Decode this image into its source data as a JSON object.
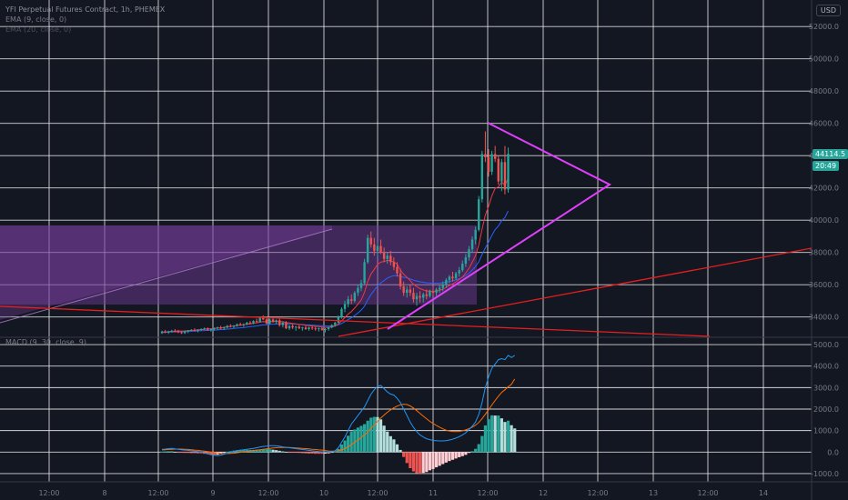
{
  "header": {
    "title": "YFI Perpetual Futures Contract, 1h, PHEMEX",
    "ema1": "EMA (9, close, 0)",
    "ema2": "EMA (20, close, 0)",
    "currency": "USD"
  },
  "last_price": "44114.5",
  "countdown": "20:49",
  "macd_label": "MACD (9, 30, close, 9)",
  "colors": {
    "background": "#131722",
    "grid": "#e8e8e8",
    "up": "#26a69a",
    "down": "#ef5350",
    "trend_red": "#e91e1e",
    "triangle": "#e040fb",
    "zone_fill": "#7b3fa0",
    "ema_fast": "#f23645",
    "ema_slow": "#2962ff",
    "macd_line": "#2196f3",
    "signal_line": "#ff6d00"
  },
  "chart_data": [
    {
      "type": "candlestick",
      "title": "YFI Perpetual Futures Contract, 1h, PHEMEX",
      "price_axis": {
        "ticks": [
          "52000.0",
          "50000.0",
          "48000.0",
          "46000.0",
          "44000.0",
          "42000.0",
          "40000.0",
          "38000.0",
          "36000.0",
          "34000.0"
        ],
        "range": [
          32800,
          52800
        ],
        "unit": "USD"
      },
      "time_axis": {
        "ticks": [
          "12:00",
          "8",
          "12:00",
          "9",
          "12:00",
          "10",
          "12:00",
          "11",
          "12:00",
          "12",
          "12:00",
          "13",
          "12:00",
          "14"
        ]
      },
      "last_price": 44114.5,
      "candles_ohlc": [
        [
          33000,
          33150,
          32950,
          33100
        ],
        [
          33100,
          33200,
          33000,
          33050
        ],
        [
          33050,
          33150,
          32950,
          33100
        ],
        [
          33100,
          33200,
          33050,
          33150
        ],
        [
          33150,
          33250,
          33050,
          33100
        ],
        [
          33100,
          33200,
          33000,
          33050
        ],
        [
          33050,
          33100,
          32950,
          33000
        ],
        [
          33000,
          33150,
          32950,
          33100
        ],
        [
          33100,
          33200,
          33000,
          33150
        ],
        [
          33150,
          33250,
          33100,
          33200
        ],
        [
          33200,
          33300,
          33100,
          33150
        ],
        [
          33150,
          33250,
          33050,
          33200
        ],
        [
          33200,
          33300,
          33150,
          33250
        ],
        [
          33250,
          33350,
          33200,
          33300
        ],
        [
          33300,
          33350,
          33150,
          33200
        ],
        [
          33200,
          33300,
          33100,
          33250
        ],
        [
          33250,
          33350,
          33150,
          33300
        ],
        [
          33300,
          33400,
          33200,
          33350
        ],
        [
          33350,
          33450,
          33250,
          33300
        ],
        [
          33300,
          33400,
          33200,
          33350
        ],
        [
          33350,
          33500,
          33300,
          33450
        ],
        [
          33450,
          33550,
          33350,
          33400
        ],
        [
          33400,
          33500,
          33300,
          33450
        ],
        [
          33450,
          33600,
          33400,
          33550
        ],
        [
          33550,
          33650,
          33450,
          33500
        ],
        [
          33500,
          33600,
          33400,
          33550
        ],
        [
          33550,
          33700,
          33500,
          33650
        ],
        [
          33650,
          33750,
          33550,
          33600
        ],
        [
          33600,
          33800,
          33550,
          33750
        ],
        [
          33750,
          33900,
          33650,
          33700
        ],
        [
          33700,
          34000,
          33650,
          33950
        ],
        [
          33950,
          34100,
          33800,
          33850
        ],
        [
          33850,
          33950,
          33550,
          33600
        ],
        [
          33600,
          33900,
          33550,
          33850
        ],
        [
          33850,
          33950,
          33650,
          33700
        ],
        [
          33700,
          33850,
          33550,
          33800
        ],
        [
          33800,
          33900,
          33400,
          33500
        ],
        [
          33500,
          33700,
          33350,
          33650
        ],
        [
          33650,
          33750,
          33250,
          33300
        ],
        [
          33300,
          33500,
          33200,
          33450
        ],
        [
          33450,
          33550,
          33250,
          33350
        ],
        [
          33350,
          33450,
          33150,
          33400
        ],
        [
          33400,
          33500,
          33250,
          33300
        ],
        [
          33300,
          33400,
          33150,
          33350
        ],
        [
          33350,
          33450,
          33200,
          33250
        ],
        [
          33250,
          33400,
          33150,
          33350
        ],
        [
          33350,
          33450,
          33200,
          33300
        ],
        [
          33300,
          33400,
          33150,
          33250
        ],
        [
          33250,
          33350,
          33100,
          33300
        ],
        [
          33300,
          33400,
          33150,
          33200
        ],
        [
          33200,
          33300,
          33050,
          33250
        ],
        [
          33250,
          33400,
          33150,
          33350
        ],
        [
          33350,
          33550,
          33300,
          33500
        ],
        [
          33500,
          33700,
          33400,
          33650
        ],
        [
          33650,
          34100,
          33600,
          34000
        ],
        [
          34000,
          34600,
          33900,
          34500
        ],
        [
          34500,
          35000,
          34300,
          34800
        ],
        [
          34800,
          35300,
          34600,
          35100
        ],
        [
          35100,
          35400,
          34800,
          35000
        ],
        [
          35000,
          35600,
          34900,
          35500
        ],
        [
          35500,
          36000,
          35300,
          35800
        ],
        [
          35800,
          36300,
          35600,
          36100
        ],
        [
          36100,
          37600,
          36000,
          37400
        ],
        [
          37400,
          39100,
          37300,
          38900
        ],
        [
          38900,
          39300,
          38300,
          38500
        ],
        [
          38500,
          38900,
          37800,
          38100
        ],
        [
          38100,
          38600,
          37700,
          38400
        ],
        [
          38400,
          38800,
          37900,
          38000
        ],
        [
          38000,
          38300,
          37400,
          37600
        ],
        [
          37600,
          38000,
          37300,
          37800
        ],
        [
          37800,
          38100,
          37200,
          37400
        ],
        [
          37400,
          37700,
          36900,
          37100
        ],
        [
          37100,
          37400,
          36500,
          36700
        ],
        [
          36700,
          37000,
          35700,
          35900
        ],
        [
          35900,
          36200,
          35300,
          35500
        ],
        [
          35500,
          35900,
          35200,
          35700
        ],
        [
          35700,
          36000,
          35300,
          35500
        ],
        [
          35500,
          35800,
          34900,
          35100
        ],
        [
          35100,
          35500,
          34700,
          35300
        ],
        [
          35300,
          35600,
          34900,
          35200
        ],
        [
          35200,
          35500,
          34900,
          35400
        ],
        [
          35400,
          35700,
          35100,
          35300
        ],
        [
          35300,
          35700,
          35200,
          35600
        ],
        [
          35600,
          35900,
          35300,
          35500
        ],
        [
          35500,
          35800,
          35300,
          35700
        ],
        [
          35700,
          36000,
          35500,
          35800
        ],
        [
          35800,
          36200,
          35600,
          36000
        ],
        [
          36000,
          36400,
          35800,
          36300
        ],
        [
          36300,
          36600,
          36100,
          36500
        ],
        [
          36500,
          36800,
          36200,
          36400
        ],
        [
          36400,
          36800,
          36300,
          36700
        ],
        [
          36700,
          37100,
          36500,
          36900
        ],
        [
          36900,
          37500,
          36800,
          37300
        ],
        [
          37300,
          37900,
          37100,
          37700
        ],
        [
          37700,
          38400,
          37500,
          38200
        ],
        [
          38200,
          39000,
          38000,
          38800
        ],
        [
          38800,
          39600,
          38500,
          39400
        ],
        [
          39400,
          41500,
          39300,
          41300
        ],
        [
          41300,
          44300,
          41100,
          44100
        ],
        [
          44100,
          45500,
          43600,
          43900
        ],
        [
          43900,
          44400,
          42700,
          43000
        ],
        [
          43000,
          44300,
          42800,
          44100
        ],
        [
          44100,
          44600,
          43600,
          43800
        ],
        [
          43800,
          44000,
          42200,
          42400
        ],
        [
          42400,
          43800,
          41800,
          43600
        ],
        [
          43600,
          44600,
          41600,
          41900
        ],
        [
          41900,
          44500,
          41700,
          44114.5
        ]
      ],
      "ema_fast": {
        "name": "EMA (9, close, 0)",
        "values": [
          33060,
          33080,
          33090,
          33110,
          33120,
          33130,
          33130,
          33140,
          33150,
          33170,
          33180,
          33200,
          33220,
          33240,
          33260,
          33270,
          33290,
          33310,
          33330,
          33360,
          33390,
          33420,
          33440,
          33470,
          33500,
          33520,
          33550,
          33580,
          33610,
          33640,
          33680,
          33710,
          33700,
          33720,
          33720,
          33730,
          33700,
          33710,
          33660,
          33640,
          33600,
          33580,
          33540,
          33520,
          33480,
          33460,
          33440,
          33420,
          33400,
          33380,
          33360,
          33360,
          33390,
          33440,
          33560,
          33750,
          33960,
          34180,
          34340,
          34550,
          34800,
          35060,
          35530,
          36210,
          36670,
          36960,
          37250,
          37400,
          37440,
          37510,
          37490,
          37410,
          37280,
          36910,
          36640,
          36460,
          36260,
          36030,
          35890,
          35760,
          35680,
          35610,
          35610,
          35590,
          35610,
          35650,
          35720,
          35830,
          35950,
          36050,
          36180,
          36320,
          36490,
          36730,
          37020,
          37390,
          37800,
          38460,
          39430,
          40320,
          40860,
          41510,
          41970,
          42060,
          42370,
          42140,
          42630
        ]
      },
      "ema_slow": {
        "name": "EMA (20, close, 0)",
        "values": [
          33040,
          33050,
          33060,
          33070,
          33080,
          33090,
          33090,
          33100,
          33110,
          33120,
          33130,
          33140,
          33150,
          33160,
          33170,
          33180,
          33190,
          33200,
          33220,
          33230,
          33250,
          33270,
          33290,
          33310,
          33330,
          33350,
          33370,
          33400,
          33420,
          33450,
          33480,
          33510,
          33520,
          33550,
          33560,
          33580,
          33580,
          33590,
          33580,
          33580,
          33570,
          33560,
          33550,
          33540,
          33520,
          33510,
          33500,
          33480,
          33470,
          33460,
          33440,
          33440,
          33450,
          33460,
          33510,
          33600,
          33710,
          33840,
          33950,
          34090,
          34250,
          34430,
          34670,
          35070,
          35400,
          35660,
          35920,
          36120,
          36260,
          36410,
          36500,
          36560,
          36570,
          36510,
          36460,
          36430,
          36360,
          36280,
          36230,
          36180,
          36150,
          36120,
          36110,
          36090,
          36090,
          36100,
          36120,
          36160,
          36210,
          36240,
          36300,
          36370,
          36460,
          36580,
          36720,
          36910,
          37120,
          37420,
          37870,
          38280,
          38650,
          39060,
          39420,
          39640,
          39970,
          40170,
          40570
        ]
      }
    },
    {
      "type": "histogram+line",
      "title": "MACD (9, 30, close, 9)",
      "value_axis": {
        "ticks": [
          "5000.0",
          "4000.0",
          "3000.0",
          "2000.0",
          "1000.0",
          "0.0",
          "-1000.0"
        ],
        "range": [
          -1300,
          5300
        ]
      },
      "macd_line": [
        120,
        140,
        160,
        170,
        150,
        130,
        110,
        90,
        80,
        60,
        40,
        20,
        0,
        -40,
        -80,
        -120,
        -150,
        -160,
        -140,
        -100,
        -60,
        -20,
        20,
        60,
        90,
        110,
        130,
        150,
        170,
        200,
        230,
        260,
        280,
        300,
        300,
        290,
        270,
        240,
        220,
        200,
        180,
        160,
        140,
        120,
        100,
        80,
        60,
        40,
        20,
        10,
        0,
        -10,
        10,
        60,
        200,
        450,
        700,
        1000,
        1300,
        1500,
        1700,
        1900,
        2100,
        2400,
        2700,
        2900,
        3050,
        3100,
        2950,
        2800,
        2700,
        2650,
        2500,
        2300,
        2000,
        1700,
        1400,
        1150,
        950,
        800,
        700,
        620,
        580,
        540,
        530,
        520,
        520,
        530,
        560,
        600,
        650,
        720,
        800,
        900,
        1050,
        1200,
        1400,
        1750,
        2300,
        3000,
        3500,
        3900,
        4100,
        4300,
        4350,
        4300,
        4500,
        4400,
        4500
      ],
      "signal_line": [
        100,
        110,
        120,
        130,
        140,
        140,
        140,
        130,
        120,
        110,
        90,
        80,
        60,
        40,
        20,
        0,
        -20,
        -40,
        -60,
        -70,
        -70,
        -60,
        -50,
        -30,
        -10,
        10,
        30,
        50,
        70,
        90,
        110,
        130,
        150,
        170,
        190,
        200,
        210,
        210,
        210,
        210,
        200,
        190,
        180,
        170,
        160,
        150,
        130,
        120,
        100,
        90,
        70,
        50,
        40,
        40,
        60,
        100,
        160,
        240,
        340,
        450,
        560,
        680,
        800,
        940,
        1100,
        1260,
        1420,
        1580,
        1720,
        1850,
        1960,
        2060,
        2140,
        2200,
        2230,
        2210,
        2150,
        2050,
        1930,
        1800,
        1670,
        1550,
        1430,
        1330,
        1240,
        1160,
        1080,
        1020,
        980,
        960,
        950,
        960,
        990,
        1030,
        1090,
        1160,
        1250,
        1380,
        1550,
        1760,
        1970,
        2190,
        2400,
        2600,
        2780,
        2900,
        3040,
        3150,
        3400
      ],
      "histogram": [
        20,
        30,
        40,
        40,
        10,
        -10,
        -30,
        -40,
        -40,
        -50,
        -50,
        -60,
        -60,
        -80,
        -100,
        -120,
        -130,
        -120,
        -80,
        -30,
        10,
        40,
        70,
        90,
        100,
        100,
        100,
        100,
        100,
        110,
        120,
        130,
        130,
        130,
        110,
        90,
        60,
        30,
        10,
        -10,
        -20,
        -30,
        -40,
        -50,
        -60,
        -70,
        -70,
        -80,
        -80,
        -80,
        -70,
        -60,
        -30,
        20,
        140,
        350,
        540,
        760,
        960,
        1050,
        1140,
        1220,
        1300,
        1460,
        1600,
        1640,
        1630,
        1520,
        1230,
        950,
        740,
        590,
        360,
        100,
        -230,
        -510,
        -750,
        -900,
        -980,
        -1000,
        -970,
        -930,
        -850,
        -790,
        -710,
        -640,
        -560,
        -490,
        -420,
        -360,
        -300,
        -240,
        -190,
        -130,
        -40,
        40,
        150,
        370,
        750,
        1240,
        1530,
        1710,
        1700,
        1700,
        1570,
        1400,
        1460,
        1250,
        1100
      ]
    }
  ]
}
